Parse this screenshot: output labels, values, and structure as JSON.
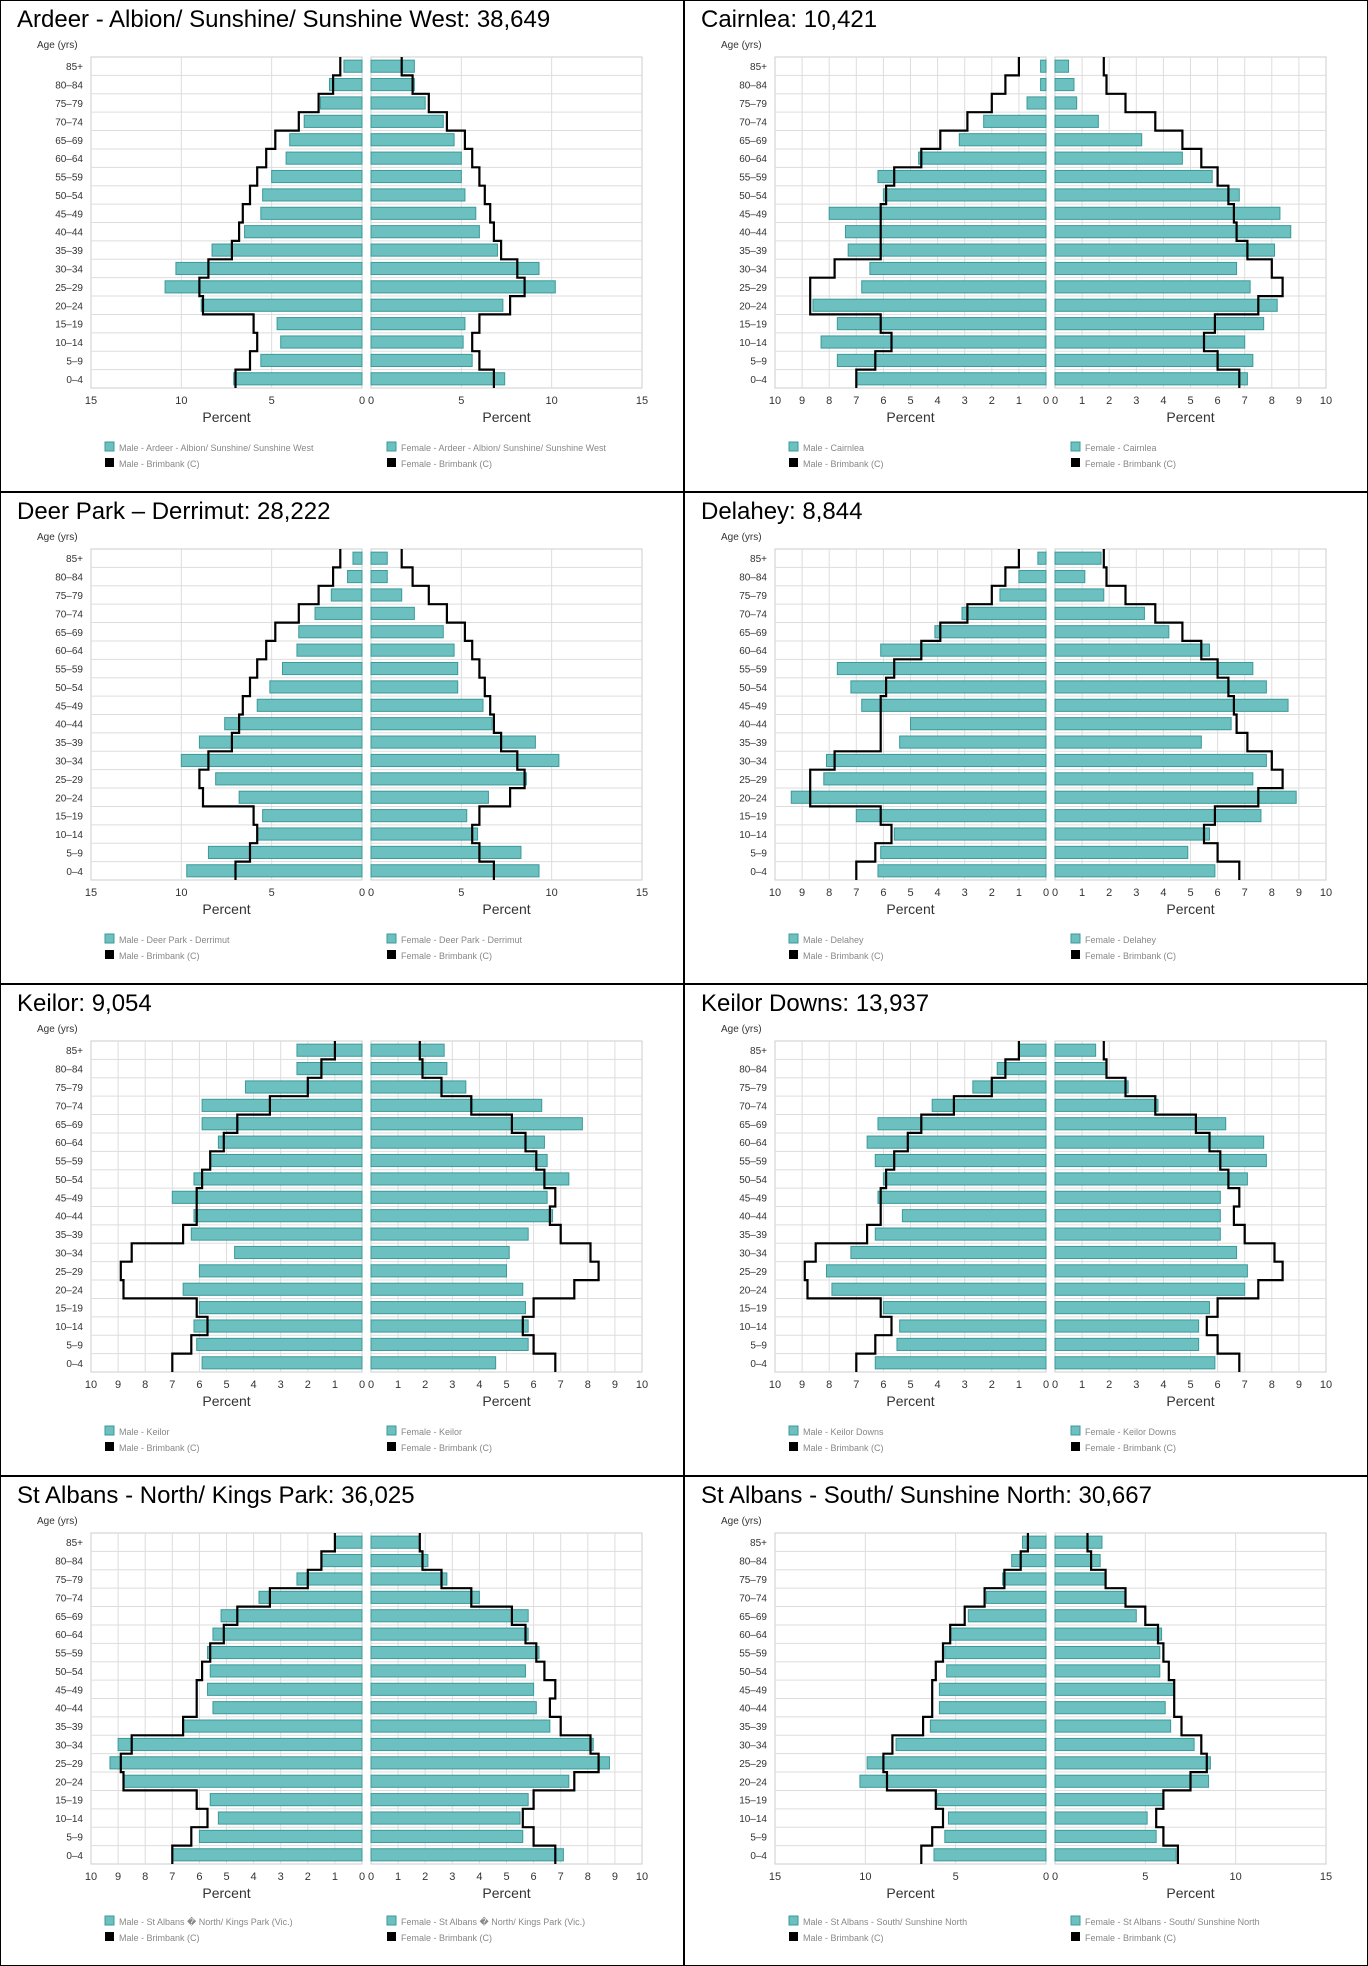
{
  "age_groups": [
    "85+",
    "80–84",
    "75–79",
    "70–74",
    "65–69",
    "60–64",
    "55–59",
    "50–54",
    "45–49",
    "40–44",
    "35–39",
    "30–34",
    "25–29",
    "20–24",
    "15–19",
    "10–14",
    "5–9",
    "0–4"
  ],
  "labels": {
    "age_axis": "Age (yrs)",
    "percent": "Percent",
    "benchmark_male": "Male - Brimbank (C)",
    "benchmark_female": "Female - Brimbank (C)"
  },
  "colors": {
    "bar_fill": "#6cc0c0",
    "bar_stroke": "#3c9a9a",
    "benchmark_line": "#000000",
    "grid": "#dddddd"
  },
  "chart_data": [
    {
      "type": "bar",
      "title": "Ardeer - Albion/ Sunshine/ Sunshine West: 38,649",
      "xlim": [
        0,
        15
      ],
      "ticks": [
        15,
        10,
        5,
        0
      ],
      "legend_male": "Male - Ardeer - Albion/ Sunshine/ Sunshine West",
      "legend_female": "Female - Ardeer - Albion/ Sunshine/ Sunshine West",
      "male": [
        1.0,
        1.8,
        2.3,
        3.2,
        4.0,
        4.2,
        5.0,
        5.5,
        5.6,
        6.5,
        8.3,
        10.3,
        10.9,
        8.9,
        4.7,
        4.5,
        5.6,
        7.1
      ],
      "female": [
        2.4,
        2.4,
        3.0,
        4.0,
        4.6,
        5.0,
        5.0,
        5.2,
        5.8,
        6.0,
        7.0,
        9.3,
        10.2,
        7.3,
        5.2,
        5.1,
        5.6,
        7.4
      ],
      "benchmark_male": [
        1.2,
        1.6,
        2.4,
        3.5,
        4.8,
        5.3,
        5.8,
        6.2,
        6.6,
        6.8,
        7.2,
        8.5,
        9.0,
        8.8,
        6.0,
        5.8,
        6.2,
        7.0
      ],
      "benchmark_female": [
        1.7,
        2.3,
        3.2,
        4.2,
        5.2,
        5.6,
        6.0,
        6.3,
        6.6,
        6.8,
        7.2,
        8.1,
        8.5,
        7.7,
        6.0,
        5.6,
        6.0,
        6.8
      ]
    },
    {
      "type": "bar",
      "title": "Cairnlea: 10,421",
      "xlim": [
        0,
        10
      ],
      "ticks": [
        10,
        9,
        8,
        7,
        6,
        5,
        4,
        3,
        2,
        1,
        0
      ],
      "legend_male": "Male - Cairnlea",
      "legend_female": "Female - Cairnlea",
      "male": [
        0.2,
        0.2,
        0.7,
        2.3,
        3.2,
        4.7,
        6.2,
        6.0,
        8.0,
        7.4,
        7.3,
        6.5,
        6.8,
        8.6,
        7.7,
        8.3,
        7.7,
        7.0
      ],
      "female": [
        0.5,
        0.7,
        0.8,
        1.6,
        3.2,
        4.7,
        5.8,
        6.8,
        8.3,
        8.7,
        8.1,
        6.7,
        7.2,
        8.2,
        7.7,
        7.0,
        7.3,
        7.1
      ],
      "benchmark_male": [
        1.0,
        1.5,
        2.0,
        2.9,
        3.9,
        4.6,
        5.6,
        5.9,
        6.1,
        6.1,
        6.1,
        7.8,
        8.7,
        8.7,
        6.1,
        5.7,
        6.3,
        7.0
      ],
      "benchmark_female": [
        1.8,
        1.9,
        2.6,
        3.7,
        4.7,
        5.4,
        6.0,
        6.4,
        6.6,
        6.7,
        7.1,
        8.0,
        8.4,
        7.5,
        5.9,
        5.5,
        6.0,
        6.8
      ]
    },
    {
      "type": "bar",
      "title": "Deer Park – Derrimut: 28,222",
      "xlim": [
        0,
        15
      ],
      "ticks": [
        15,
        10,
        5,
        0
      ],
      "legend_male": "Male - Deer Park - Derrimut",
      "legend_female": "Female - Deer Park - Derrimut",
      "male": [
        0.5,
        0.8,
        1.7,
        2.6,
        3.5,
        3.6,
        4.4,
        5.1,
        5.8,
        7.6,
        9.0,
        10.0,
        8.1,
        6.8,
        5.5,
        5.8,
        8.5,
        9.7
      ],
      "female": [
        0.9,
        0.9,
        1.7,
        2.4,
        4.0,
        4.6,
        4.8,
        4.8,
        6.2,
        6.7,
        9.1,
        10.4,
        8.6,
        6.5,
        5.3,
        5.9,
        8.3,
        9.3
      ],
      "benchmark_male": [
        1.2,
        1.6,
        2.4,
        3.5,
        4.8,
        5.3,
        5.8,
        6.2,
        6.6,
        6.8,
        7.2,
        8.5,
        9.0,
        8.8,
        6.0,
        5.8,
        6.2,
        7.0
      ],
      "benchmark_female": [
        1.7,
        2.3,
        3.2,
        4.2,
        5.2,
        5.6,
        6.0,
        6.3,
        6.6,
        6.8,
        7.2,
        8.1,
        8.5,
        7.7,
        6.0,
        5.6,
        6.0,
        6.8
      ]
    },
    {
      "type": "bar",
      "title": "Delahey: 8,844",
      "xlim": [
        0,
        10
      ],
      "ticks": [
        10,
        9,
        8,
        7,
        6,
        5,
        4,
        3,
        2,
        1,
        0
      ],
      "legend_male": "Male - Delahey",
      "legend_female": "Female - Delahey",
      "male": [
        0.3,
        1.0,
        1.7,
        3.1,
        4.1,
        6.1,
        7.7,
        7.2,
        6.8,
        5.0,
        5.4,
        8.1,
        8.2,
        9.4,
        7.0,
        5.6,
        6.1,
        6.2
      ],
      "female": [
        1.7,
        1.1,
        1.8,
        3.3,
        4.2,
        5.7,
        7.3,
        7.8,
        8.6,
        6.5,
        5.4,
        7.8,
        7.3,
        8.9,
        7.6,
        5.7,
        4.9,
        5.9
      ],
      "benchmark_male": [
        1.0,
        1.5,
        2.0,
        2.9,
        3.9,
        4.6,
        5.6,
        5.9,
        6.1,
        6.1,
        6.1,
        7.8,
        8.7,
        8.7,
        6.1,
        5.7,
        6.3,
        7.0
      ],
      "benchmark_female": [
        1.8,
        1.9,
        2.6,
        3.7,
        4.7,
        5.4,
        6.0,
        6.4,
        6.6,
        6.7,
        7.1,
        8.0,
        8.4,
        7.5,
        5.9,
        5.5,
        6.0,
        6.8
      ]
    },
    {
      "type": "bar",
      "title": "Keilor: 9,054",
      "xlim": [
        0,
        10
      ],
      "ticks": [
        10,
        9,
        8,
        7,
        6,
        5,
        4,
        3,
        2,
        1,
        0
      ],
      "legend_male": "Male - Keilor",
      "legend_female": "Female - Keilor",
      "male": [
        2.4,
        2.4,
        4.3,
        5.9,
        5.9,
        5.3,
        5.6,
        6.2,
        7.0,
        6.2,
        6.3,
        4.7,
        6.0,
        6.6,
        6.0,
        6.2,
        6.1,
        5.9
      ],
      "female": [
        2.7,
        2.8,
        3.5,
        6.3,
        7.8,
        6.4,
        6.5,
        7.3,
        6.5,
        6.7,
        5.8,
        5.1,
        5.0,
        5.6,
        5.7,
        5.8,
        5.8,
        4.6
      ],
      "benchmark_male": [
        1.0,
        1.5,
        2.0,
        3.4,
        4.6,
        5.1,
        5.6,
        5.9,
        6.1,
        6.1,
        6.6,
        8.5,
        8.9,
        8.8,
        6.1,
        5.7,
        6.3,
        7.0
      ],
      "benchmark_female": [
        1.8,
        1.9,
        2.6,
        3.7,
        5.2,
        5.7,
        6.1,
        6.4,
        6.8,
        6.6,
        7.0,
        8.1,
        8.4,
        7.5,
        6.0,
        5.6,
        6.0,
        6.8
      ]
    },
    {
      "type": "bar",
      "title": "Keilor Downs: 13,937",
      "xlim": [
        0,
        10
      ],
      "ticks": [
        10,
        9,
        8,
        7,
        6,
        5,
        4,
        3,
        2,
        1,
        0
      ],
      "legend_male": "Male - Keilor Downs",
      "legend_female": "Female - Keilor Downs",
      "male": [
        1.0,
        1.8,
        2.7,
        4.2,
        6.2,
        6.6,
        6.3,
        6.0,
        6.2,
        5.3,
        6.3,
        7.2,
        8.1,
        7.9,
        6.0,
        5.4,
        5.5,
        6.3
      ],
      "female": [
        1.5,
        1.9,
        2.7,
        3.8,
        6.3,
        7.7,
        7.8,
        7.1,
        6.1,
        6.1,
        6.1,
        6.7,
        7.1,
        7.0,
        5.7,
        5.3,
        5.3,
        5.9
      ],
      "benchmark_male": [
        1.0,
        1.5,
        2.0,
        3.4,
        4.6,
        5.1,
        5.6,
        5.9,
        6.1,
        6.1,
        6.6,
        8.5,
        8.9,
        8.8,
        6.1,
        5.7,
        6.3,
        7.0
      ],
      "benchmark_female": [
        1.8,
        1.9,
        2.6,
        3.7,
        5.2,
        5.7,
        6.1,
        6.4,
        6.8,
        6.6,
        7.0,
        8.1,
        8.4,
        7.5,
        6.0,
        5.6,
        6.0,
        6.8
      ]
    },
    {
      "type": "bar",
      "title": "St Albans - North/ Kings Park: 36,025",
      "xlim": [
        0,
        10
      ],
      "ticks": [
        10,
        9,
        8,
        7,
        6,
        5,
        4,
        3,
        2,
        1,
        0
      ],
      "legend_male": "Male - St Albans � North/ Kings Park (Vic.)",
      "legend_female": "Female - St Albans � North/ Kings Park (Vic.)",
      "male": [
        1.0,
        1.5,
        2.4,
        3.8,
        5.2,
        5.5,
        5.7,
        5.6,
        5.7,
        5.5,
        6.6,
        9.0,
        9.3,
        8.8,
        5.6,
        5.3,
        6.0,
        7.0
      ],
      "female": [
        1.8,
        2.1,
        2.8,
        4.0,
        5.8,
        5.8,
        6.2,
        5.7,
        6.0,
        6.1,
        6.6,
        8.2,
        8.8,
        7.3,
        5.8,
        5.5,
        5.6,
        7.1
      ],
      "benchmark_male": [
        1.0,
        1.5,
        2.0,
        3.4,
        4.6,
        5.1,
        5.6,
        5.9,
        6.1,
        6.1,
        6.6,
        8.5,
        8.9,
        8.8,
        6.1,
        5.7,
        6.3,
        7.0
      ],
      "benchmark_female": [
        1.8,
        1.9,
        2.6,
        3.7,
        5.2,
        5.7,
        6.1,
        6.4,
        6.8,
        6.6,
        7.0,
        8.1,
        8.4,
        7.5,
        6.0,
        5.6,
        6.0,
        6.8
      ]
    },
    {
      "type": "bar",
      "title": "St Albans - South/ Sunshine North: 30,667",
      "xlim": [
        0,
        15
      ],
      "ticks": [
        15,
        10,
        5,
        0
      ],
      "legend_male": "Male - St Albans - South/ Sunshine North",
      "legend_female": "Female - St Albans - South/ Sunshine North",
      "male": [
        1.3,
        1.9,
        2.4,
        3.3,
        4.3,
        5.3,
        5.6,
        5.5,
        5.9,
        5.9,
        6.4,
        8.3,
        9.9,
        10.3,
        6.0,
        5.4,
        5.6,
        6.2
      ],
      "female": [
        2.6,
        2.5,
        2.8,
        3.9,
        4.5,
        5.9,
        5.8,
        5.8,
        6.6,
        6.1,
        6.4,
        7.7,
        8.6,
        8.5,
        6.0,
        5.1,
        5.6,
        6.7
      ],
      "benchmark_male": [
        1.0,
        1.4,
        2.3,
        3.4,
        4.5,
        5.3,
        5.7,
        6.1,
        6.3,
        6.3,
        6.8,
        8.5,
        9.0,
        8.8,
        6.1,
        5.7,
        6.3,
        6.9
      ],
      "benchmark_female": [
        1.8,
        2.0,
        2.8,
        3.9,
        5.0,
        5.7,
        6.0,
        6.3,
        6.6,
        6.6,
        7.0,
        8.1,
        8.4,
        7.5,
        6.0,
        5.6,
        6.0,
        6.8
      ]
    }
  ]
}
